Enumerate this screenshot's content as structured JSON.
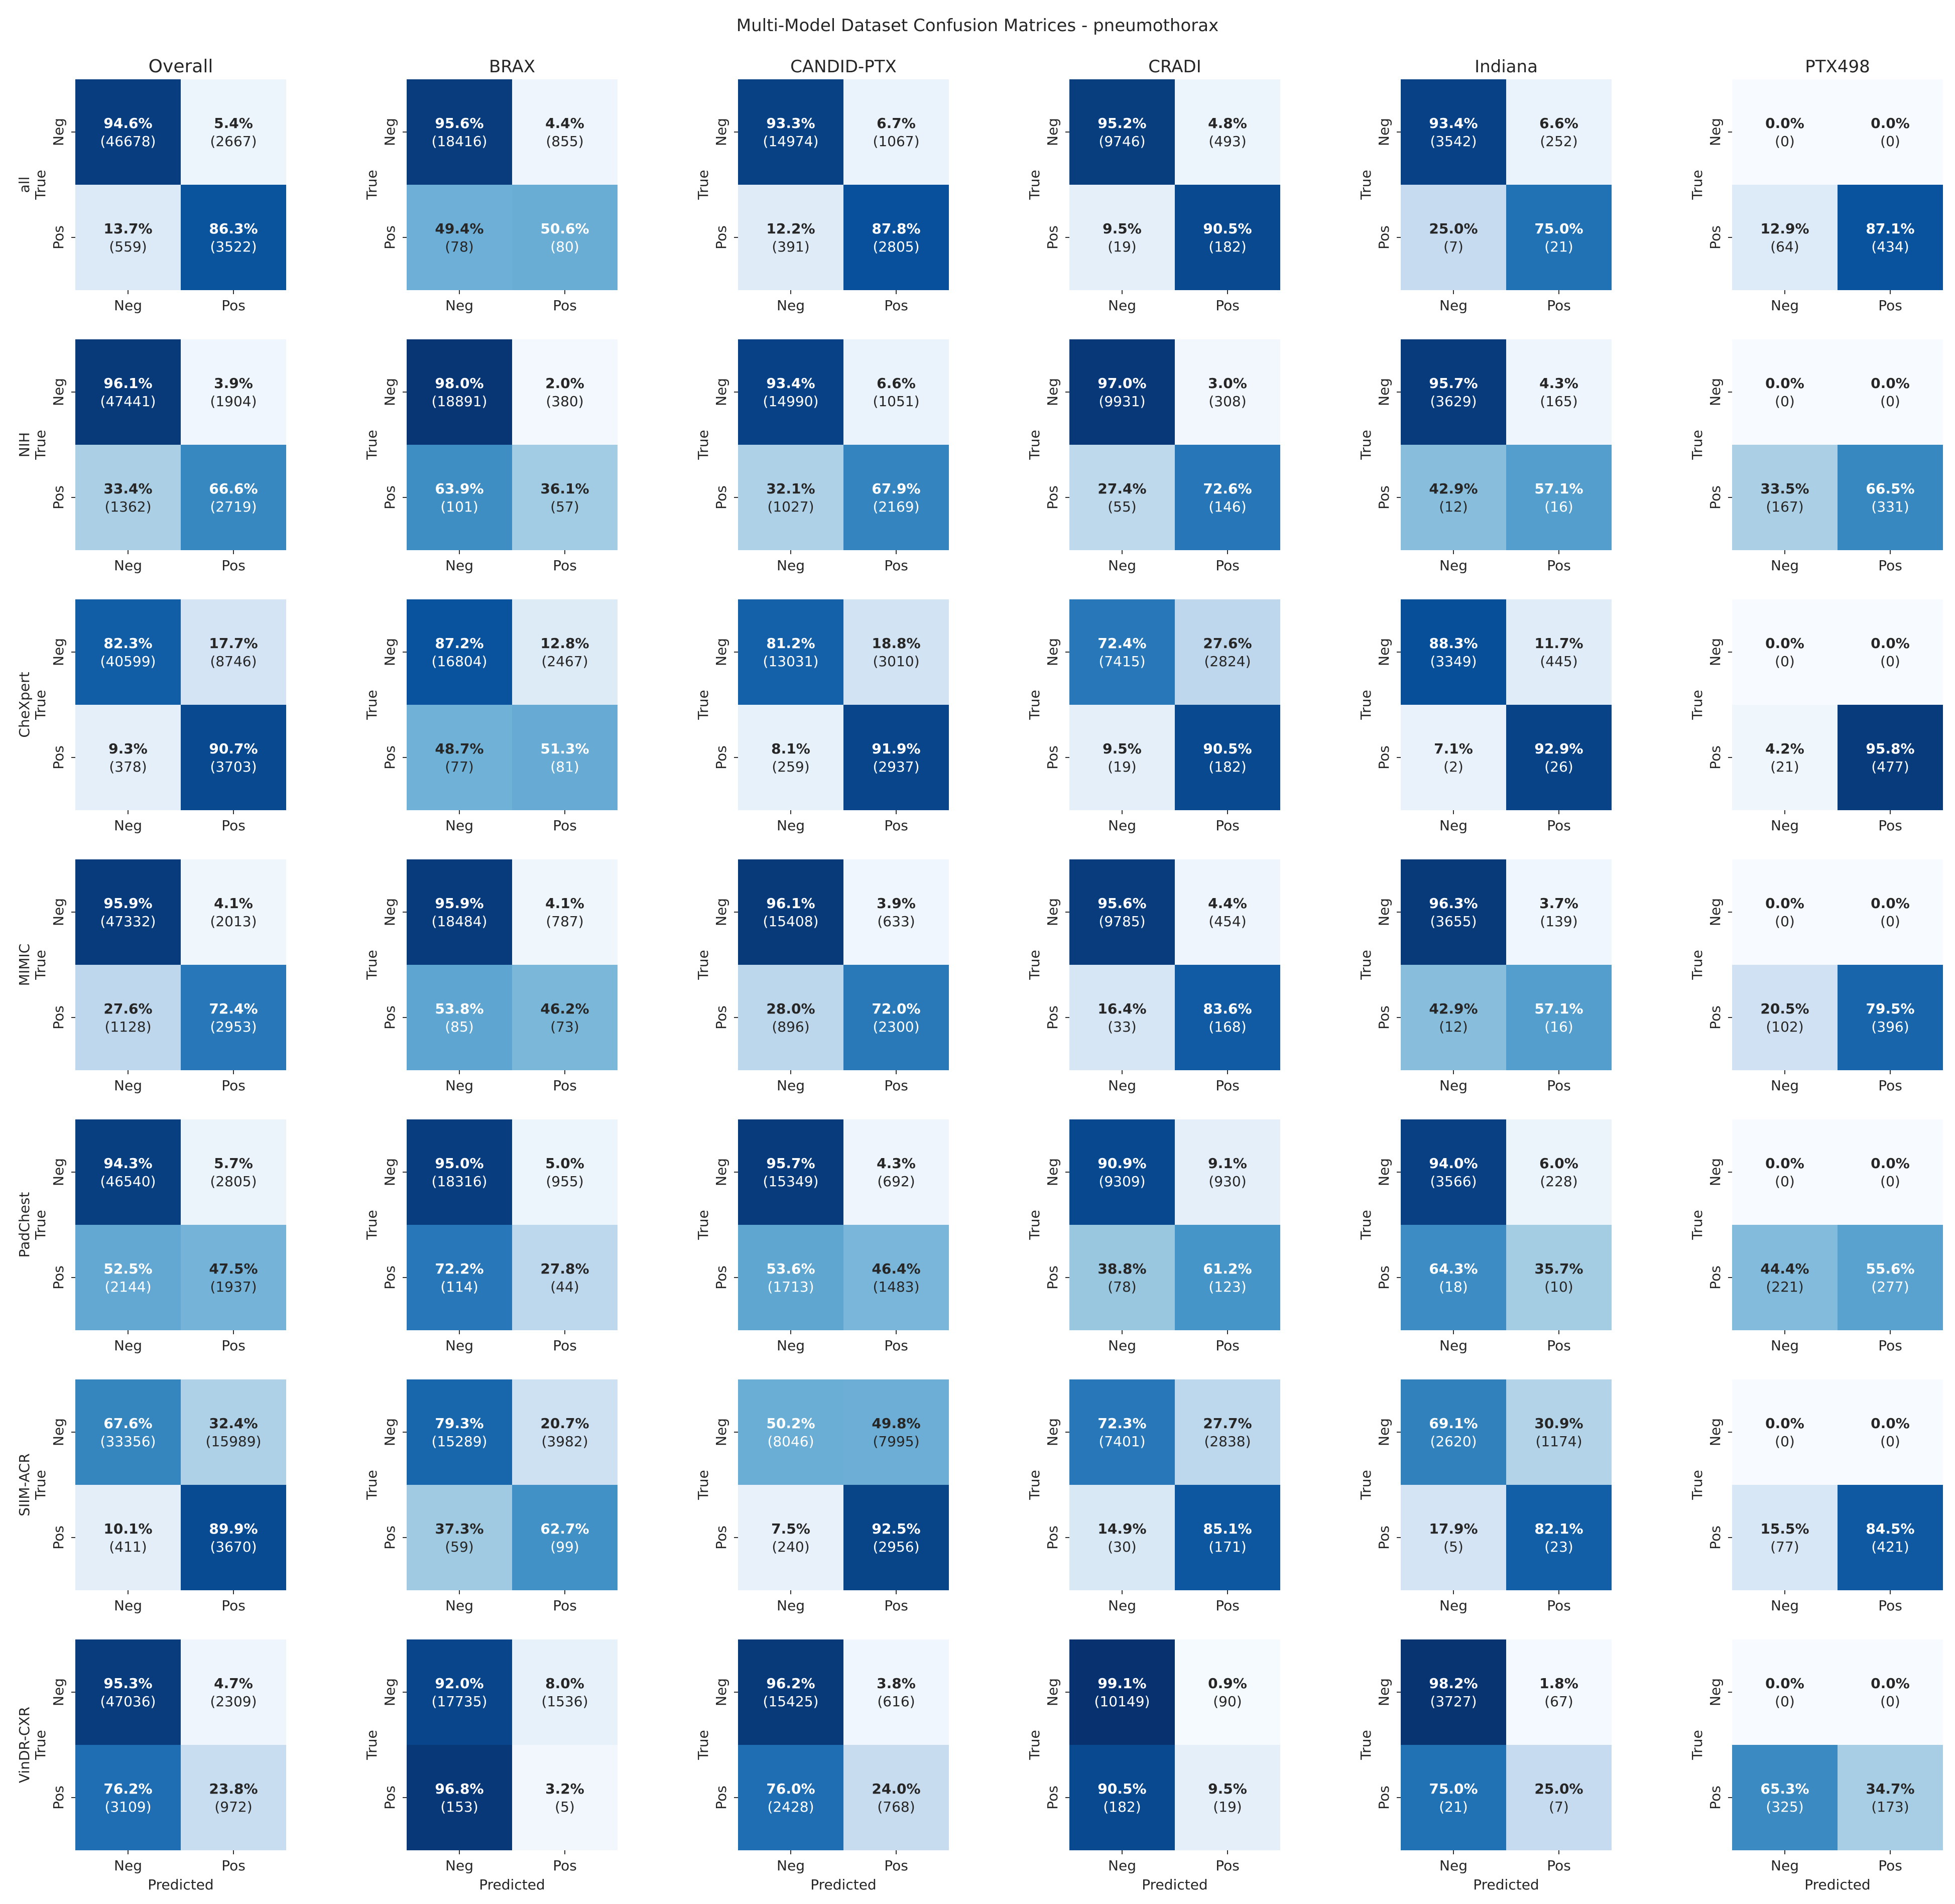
{
  "chart_data": {
    "type": "heatmap",
    "title": "Multi-Model Dataset Confusion Matrices - pneumothorax",
    "columns": [
      "Overall",
      "BRAX",
      "CANDID-PTX",
      "CRADI",
      "Indiana",
      "PTX498"
    ],
    "rows": [
      "all",
      "NIH",
      "CheXpert",
      "MIMIC",
      "PadChest",
      "SIIM-ACR",
      "VinDR-CXR"
    ],
    "row_axis_label": "True",
    "xlabel": "Predicted",
    "tick_labels": [
      "Neg",
      "Pos"
    ],
    "colormap": "Blues",
    "cell_format": "percent (count)",
    "matrices": [
      [
        {
          "pct": [
            [
              94.6,
              5.4
            ],
            [
              13.7,
              86.3
            ]
          ],
          "count": [
            [
              46678,
              2667
            ],
            [
              559,
              3522
            ]
          ]
        },
        {
          "pct": [
            [
              95.6,
              4.4
            ],
            [
              49.4,
              50.6
            ]
          ],
          "count": [
            [
              18416,
              855
            ],
            [
              78,
              80
            ]
          ]
        },
        {
          "pct": [
            [
              93.3,
              6.7
            ],
            [
              12.2,
              87.8
            ]
          ],
          "count": [
            [
              14974,
              1067
            ],
            [
              391,
              2805
            ]
          ]
        },
        {
          "pct": [
            [
              95.2,
              4.8
            ],
            [
              9.5,
              90.5
            ]
          ],
          "count": [
            [
              9746,
              493
            ],
            [
              19,
              182
            ]
          ]
        },
        {
          "pct": [
            [
              93.4,
              6.6
            ],
            [
              25.0,
              75.0
            ]
          ],
          "count": [
            [
              3542,
              252
            ],
            [
              7,
              21
            ]
          ]
        },
        {
          "pct": [
            [
              0.0,
              0.0
            ],
            [
              12.9,
              87.1
            ]
          ],
          "count": [
            [
              0,
              0
            ],
            [
              64,
              434
            ]
          ]
        }
      ],
      [
        {
          "pct": [
            [
              96.1,
              3.9
            ],
            [
              33.4,
              66.6
            ]
          ],
          "count": [
            [
              47441,
              1904
            ],
            [
              1362,
              2719
            ]
          ]
        },
        {
          "pct": [
            [
              98.0,
              2.0
            ],
            [
              63.9,
              36.1
            ]
          ],
          "count": [
            [
              18891,
              380
            ],
            [
              101,
              57
            ]
          ]
        },
        {
          "pct": [
            [
              93.4,
              6.6
            ],
            [
              32.1,
              67.9
            ]
          ],
          "count": [
            [
              14990,
              1051
            ],
            [
              1027,
              2169
            ]
          ]
        },
        {
          "pct": [
            [
              97.0,
              3.0
            ],
            [
              27.4,
              72.6
            ]
          ],
          "count": [
            [
              9931,
              308
            ],
            [
              55,
              146
            ]
          ]
        },
        {
          "pct": [
            [
              95.7,
              4.3
            ],
            [
              42.9,
              57.1
            ]
          ],
          "count": [
            [
              3629,
              165
            ],
            [
              12,
              16
            ]
          ]
        },
        {
          "pct": [
            [
              0.0,
              0.0
            ],
            [
              33.5,
              66.5
            ]
          ],
          "count": [
            [
              0,
              0
            ],
            [
              167,
              331
            ]
          ]
        }
      ],
      [
        {
          "pct": [
            [
              82.3,
              17.7
            ],
            [
              9.3,
              90.7
            ]
          ],
          "count": [
            [
              40599,
              8746
            ],
            [
              378,
              3703
            ]
          ]
        },
        {
          "pct": [
            [
              87.2,
              12.8
            ],
            [
              48.7,
              51.3
            ]
          ],
          "count": [
            [
              16804,
              2467
            ],
            [
              77,
              81
            ]
          ]
        },
        {
          "pct": [
            [
              81.2,
              18.8
            ],
            [
              8.1,
              91.9
            ]
          ],
          "count": [
            [
              13031,
              3010
            ],
            [
              259,
              2937
            ]
          ]
        },
        {
          "pct": [
            [
              72.4,
              27.6
            ],
            [
              9.5,
              90.5
            ]
          ],
          "count": [
            [
              7415,
              2824
            ],
            [
              19,
              182
            ]
          ]
        },
        {
          "pct": [
            [
              88.3,
              11.7
            ],
            [
              7.1,
              92.9
            ]
          ],
          "count": [
            [
              3349,
              445
            ],
            [
              2,
              26
            ]
          ]
        },
        {
          "pct": [
            [
              0.0,
              0.0
            ],
            [
              4.2,
              95.8
            ]
          ],
          "count": [
            [
              0,
              0
            ],
            [
              21,
              477
            ]
          ]
        }
      ],
      [
        {
          "pct": [
            [
              95.9,
              4.1
            ],
            [
              27.6,
              72.4
            ]
          ],
          "count": [
            [
              47332,
              2013
            ],
            [
              1128,
              2953
            ]
          ]
        },
        {
          "pct": [
            [
              95.9,
              4.1
            ],
            [
              53.8,
              46.2
            ]
          ],
          "count": [
            [
              18484,
              787
            ],
            [
              85,
              73
            ]
          ]
        },
        {
          "pct": [
            [
              96.1,
              3.9
            ],
            [
              28.0,
              72.0
            ]
          ],
          "count": [
            [
              15408,
              633
            ],
            [
              896,
              2300
            ]
          ]
        },
        {
          "pct": [
            [
              95.6,
              4.4
            ],
            [
              16.4,
              83.6
            ]
          ],
          "count": [
            [
              9785,
              454
            ],
            [
              33,
              168
            ]
          ]
        },
        {
          "pct": [
            [
              96.3,
              3.7
            ],
            [
              42.9,
              57.1
            ]
          ],
          "count": [
            [
              3655,
              139
            ],
            [
              12,
              16
            ]
          ]
        },
        {
          "pct": [
            [
              0.0,
              0.0
            ],
            [
              20.5,
              79.5
            ]
          ],
          "count": [
            [
              0,
              0
            ],
            [
              102,
              396
            ]
          ]
        }
      ],
      [
        {
          "pct": [
            [
              94.3,
              5.7
            ],
            [
              52.5,
              47.5
            ]
          ],
          "count": [
            [
              46540,
              2805
            ],
            [
              2144,
              1937
            ]
          ]
        },
        {
          "pct": [
            [
              95.0,
              5.0
            ],
            [
              72.2,
              27.8
            ]
          ],
          "count": [
            [
              18316,
              955
            ],
            [
              114,
              44
            ]
          ]
        },
        {
          "pct": [
            [
              95.7,
              4.3
            ],
            [
              53.6,
              46.4
            ]
          ],
          "count": [
            [
              15349,
              692
            ],
            [
              1713,
              1483
            ]
          ]
        },
        {
          "pct": [
            [
              90.9,
              9.1
            ],
            [
              38.8,
              61.2
            ]
          ],
          "count": [
            [
              9309,
              930
            ],
            [
              78,
              123
            ]
          ]
        },
        {
          "pct": [
            [
              94.0,
              6.0
            ],
            [
              64.3,
              35.7
            ]
          ],
          "count": [
            [
              3566,
              228
            ],
            [
              18,
              10
            ]
          ]
        },
        {
          "pct": [
            [
              0.0,
              0.0
            ],
            [
              44.4,
              55.6
            ]
          ],
          "count": [
            [
              0,
              0
            ],
            [
              221,
              277
            ]
          ]
        }
      ],
      [
        {
          "pct": [
            [
              67.6,
              32.4
            ],
            [
              10.1,
              89.9
            ]
          ],
          "count": [
            [
              33356,
              15989
            ],
            [
              411,
              3670
            ]
          ]
        },
        {
          "pct": [
            [
              79.3,
              20.7
            ],
            [
              37.3,
              62.7
            ]
          ],
          "count": [
            [
              15289,
              3982
            ],
            [
              59,
              99
            ]
          ]
        },
        {
          "pct": [
            [
              50.2,
              49.8
            ],
            [
              7.5,
              92.5
            ]
          ],
          "count": [
            [
              8046,
              7995
            ],
            [
              240,
              2956
            ]
          ]
        },
        {
          "pct": [
            [
              72.3,
              27.7
            ],
            [
              14.9,
              85.1
            ]
          ],
          "count": [
            [
              7401,
              2838
            ],
            [
              30,
              171
            ]
          ]
        },
        {
          "pct": [
            [
              69.1,
              30.9
            ],
            [
              17.9,
              82.1
            ]
          ],
          "count": [
            [
              2620,
              1174
            ],
            [
              5,
              23
            ]
          ]
        },
        {
          "pct": [
            [
              0.0,
              0.0
            ],
            [
              15.5,
              84.5
            ]
          ],
          "count": [
            [
              0,
              0
            ],
            [
              77,
              421
            ]
          ]
        }
      ],
      [
        {
          "pct": [
            [
              95.3,
              4.7
            ],
            [
              76.2,
              23.8
            ]
          ],
          "count": [
            [
              47036,
              2309
            ],
            [
              3109,
              972
            ]
          ]
        },
        {
          "pct": [
            [
              92.0,
              8.0
            ],
            [
              96.8,
              3.2
            ]
          ],
          "count": [
            [
              17735,
              1536
            ],
            [
              153,
              5
            ]
          ]
        },
        {
          "pct": [
            [
              96.2,
              3.8
            ],
            [
              76.0,
              24.0
            ]
          ],
          "count": [
            [
              15425,
              616
            ],
            [
              2428,
              768
            ]
          ]
        },
        {
          "pct": [
            [
              99.1,
              0.9
            ],
            [
              90.5,
              9.5
            ]
          ],
          "count": [
            [
              10149,
              90
            ],
            [
              182,
              19
            ]
          ]
        },
        {
          "pct": [
            [
              98.2,
              1.8
            ],
            [
              75.0,
              25.0
            ]
          ],
          "count": [
            [
              3727,
              67
            ],
            [
              21,
              7
            ]
          ]
        },
        {
          "pct": [
            [
              0.0,
              0.0
            ],
            [
              65.3,
              34.7
            ]
          ],
          "count": [
            [
              0,
              0
            ],
            [
              325,
              173
            ]
          ]
        }
      ]
    ]
  }
}
